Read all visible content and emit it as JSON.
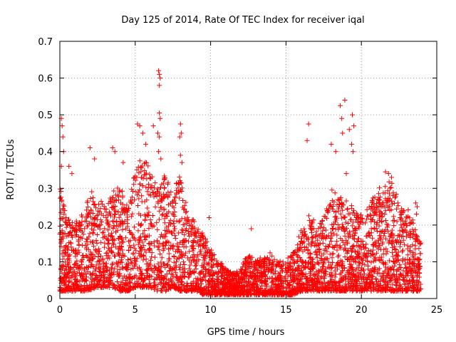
{
  "chart_data": {
    "type": "scatter",
    "title": "Day 125 of 2014, Rate Of TEC Index for receiver iqal",
    "xlabel": "GPS time / hours",
    "ylabel": "ROTI / TECUs",
    "xlim": [
      0,
      25
    ],
    "ylim": [
      0,
      0.7
    ],
    "xticks": [
      0,
      5,
      10,
      15,
      20,
      25
    ],
    "yticks": [
      0,
      0.1,
      0.2,
      0.3,
      0.4,
      0.5,
      0.6,
      0.7
    ],
    "xtick_labels": [
      "0",
      "5",
      "10",
      "15",
      "20",
      "25"
    ],
    "ytick_labels": [
      "0",
      "0.1",
      "0.2",
      "0.3",
      "0.4",
      "0.5",
      "0.6",
      "0.7"
    ],
    "grid": true,
    "marker": "+",
    "marker_color": "#ff0000",
    "data_extent_hours": [
      0,
      23.95
    ],
    "envelope": {
      "x": [
        0,
        0.5,
        1,
        1.5,
        2,
        2.5,
        3,
        3.5,
        4,
        4.5,
        5,
        5.5,
        6,
        6.5,
        7,
        7.5,
        8,
        8.5,
        9,
        9.5,
        10,
        10.5,
        11,
        11.5,
        12,
        12.5,
        13,
        13.5,
        14,
        14.5,
        15,
        15.5,
        16,
        16.5,
        17,
        17.5,
        18,
        18.5,
        19,
        19.5,
        20,
        20.5,
        21,
        21.5,
        22,
        22.5,
        23,
        23.5,
        23.95
      ],
      "typical_max": [
        0.3,
        0.22,
        0.2,
        0.22,
        0.28,
        0.27,
        0.25,
        0.28,
        0.3,
        0.25,
        0.35,
        0.38,
        0.33,
        0.3,
        0.35,
        0.28,
        0.33,
        0.22,
        0.2,
        0.17,
        0.13,
        0.1,
        0.08,
        0.07,
        0.08,
        0.12,
        0.1,
        0.11,
        0.12,
        0.1,
        0.1,
        0.13,
        0.18,
        0.22,
        0.2,
        0.22,
        0.28,
        0.3,
        0.26,
        0.24,
        0.22,
        0.25,
        0.28,
        0.3,
        0.32,
        0.25,
        0.24,
        0.2,
        0.18
      ],
      "typical_min": [
        0.02,
        0.02,
        0.02,
        0.02,
        0.02,
        0.03,
        0.03,
        0.03,
        0.02,
        0.02,
        0.03,
        0.03,
        0.03,
        0.02,
        0.02,
        0.03,
        0.02,
        0.02,
        0.02,
        0.01,
        0.01,
        0.01,
        0.01,
        0.01,
        0.01,
        0.01,
        0.01,
        0.01,
        0.01,
        0.01,
        0.01,
        0.01,
        0.02,
        0.02,
        0.02,
        0.02,
        0.02,
        0.02,
        0.02,
        0.02,
        0.02,
        0.02,
        0.02,
        0.02,
        0.02,
        0.02,
        0.02,
        0.02,
        0.02
      ]
    },
    "notable_points": [
      {
        "x": 0.1,
        "y": 0.49
      },
      {
        "x": 0.15,
        "y": 0.47
      },
      {
        "x": 0.2,
        "y": 0.44
      },
      {
        "x": 0.25,
        "y": 0.4
      },
      {
        "x": 0.1,
        "y": 0.36
      },
      {
        "x": 0.6,
        "y": 0.36
      },
      {
        "x": 0.8,
        "y": 0.34
      },
      {
        "x": 2.0,
        "y": 0.41
      },
      {
        "x": 2.3,
        "y": 0.38
      },
      {
        "x": 3.5,
        "y": 0.41
      },
      {
        "x": 3.65,
        "y": 0.4
      },
      {
        "x": 4.2,
        "y": 0.37
      },
      {
        "x": 5.15,
        "y": 0.475
      },
      {
        "x": 5.3,
        "y": 0.47
      },
      {
        "x": 5.5,
        "y": 0.45
      },
      {
        "x": 5.7,
        "y": 0.42
      },
      {
        "x": 6.2,
        "y": 0.47
      },
      {
        "x": 6.55,
        "y": 0.62
      },
      {
        "x": 6.6,
        "y": 0.61
      },
      {
        "x": 6.65,
        "y": 0.6
      },
      {
        "x": 6.6,
        "y": 0.58
      },
      {
        "x": 6.6,
        "y": 0.505
      },
      {
        "x": 6.65,
        "y": 0.49
      },
      {
        "x": 6.5,
        "y": 0.45
      },
      {
        "x": 6.6,
        "y": 0.44
      },
      {
        "x": 6.55,
        "y": 0.4
      },
      {
        "x": 6.7,
        "y": 0.38
      },
      {
        "x": 8.0,
        "y": 0.475
      },
      {
        "x": 8.05,
        "y": 0.45
      },
      {
        "x": 7.95,
        "y": 0.44
      },
      {
        "x": 8.0,
        "y": 0.39
      },
      {
        "x": 8.1,
        "y": 0.37
      },
      {
        "x": 9.9,
        "y": 0.22
      },
      {
        "x": 12.7,
        "y": 0.19
      },
      {
        "x": 16.5,
        "y": 0.475
      },
      {
        "x": 16.4,
        "y": 0.43
      },
      {
        "x": 18.0,
        "y": 0.42
      },
      {
        "x": 18.3,
        "y": 0.4
      },
      {
        "x": 18.6,
        "y": 0.525
      },
      {
        "x": 18.7,
        "y": 0.49
      },
      {
        "x": 18.75,
        "y": 0.45
      },
      {
        "x": 18.9,
        "y": 0.54
      },
      {
        "x": 19.2,
        "y": 0.46
      },
      {
        "x": 19.35,
        "y": 0.42
      },
      {
        "x": 19.4,
        "y": 0.5
      },
      {
        "x": 19.5,
        "y": 0.47
      },
      {
        "x": 19.45,
        "y": 0.4
      },
      {
        "x": 19.0,
        "y": 0.34
      },
      {
        "x": 21.6,
        "y": 0.345
      },
      {
        "x": 21.8,
        "y": 0.34
      },
      {
        "x": 22.0,
        "y": 0.33
      },
      {
        "x": 23.6,
        "y": 0.26
      },
      {
        "x": 23.7,
        "y": 0.25
      },
      {
        "x": 23.65,
        "y": 0.23
      }
    ]
  }
}
